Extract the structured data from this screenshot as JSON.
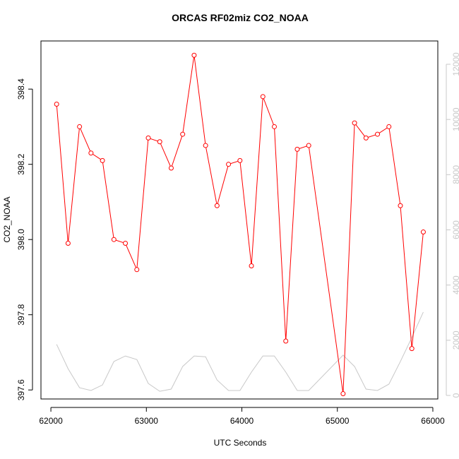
{
  "chart_data": {
    "type": "line",
    "title": "ORCAS RF02miz CO2_NOAA",
    "x_label": "UTC Seconds",
    "y_label": "CO2_NOAA",
    "x": [
      62060,
      62180,
      62300,
      62420,
      62540,
      62660,
      62780,
      62900,
      63020,
      63140,
      63260,
      63380,
      63500,
      63620,
      63740,
      63860,
      63980,
      64100,
      64220,
      64340,
      64460,
      64580,
      64700,
      65060,
      65180,
      65300,
      65420,
      65540,
      65660,
      65780,
      65900
    ],
    "series": [
      {
        "color": "#ff0000",
        "markers": true,
        "values": [
          398.36,
          397.99,
          398.3,
          398.23,
          398.21,
          398.0,
          397.99,
          397.92,
          398.27,
          398.26,
          398.19,
          398.28,
          398.49,
          398.25,
          398.09,
          398.2,
          398.21,
          397.93,
          398.38,
          398.3,
          397.73,
          398.24,
          398.25,
          397.59,
          398.31,
          398.27,
          398.28,
          398.3,
          398.09,
          397.71,
          398.02
        ]
      },
      {
        "color": "#c8c8c8",
        "axis": "y2",
        "markers": false,
        "values": [
          1850,
          970,
          280,
          180,
          380,
          1230,
          1430,
          1300,
          435,
          150,
          230,
          1050,
          1430,
          1400,
          560,
          180,
          180,
          845,
          1430,
          1430,
          845,
          180,
          180,
          1460,
          1050,
          230,
          180,
          410,
          1230,
          2100,
          3020
        ]
      }
    ],
    "xlim": [
      61896,
      66052
    ],
    "xticks": [
      62000,
      63000,
      64000,
      65000,
      66000
    ],
    "ylim": [
      397.576,
      398.528
    ],
    "yticks": [
      397.6,
      397.8,
      {
        "value": 398,
        "label": "398.0"
      },
      398.2,
      398.4
    ],
    "y2lim": [
      -128,
      12844
    ],
    "y2ticks": [
      0,
      2000,
      4000,
      6000,
      8000,
      10000,
      12000
    ],
    "y2_color": "#c8c8c8"
  }
}
